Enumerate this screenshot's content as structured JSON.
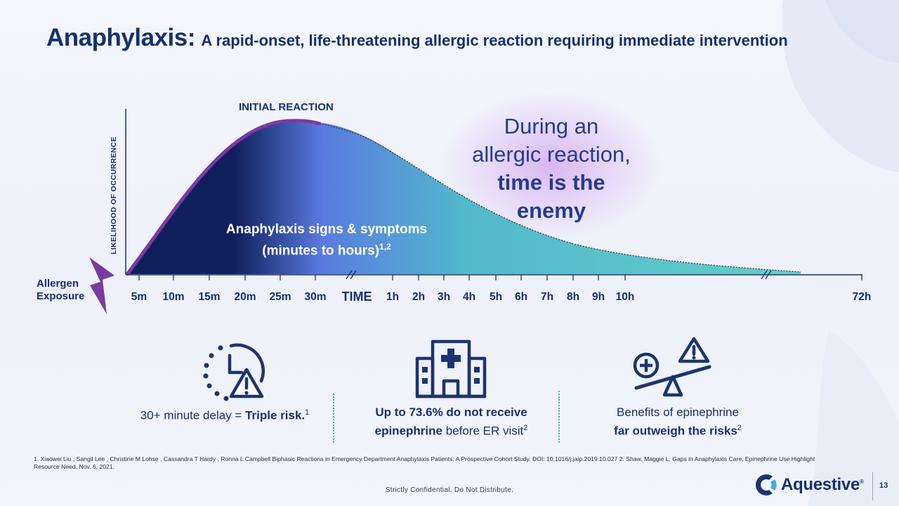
{
  "title": {
    "main": "Anaphylaxis:",
    "subtitle": "A rapid-onset, life-threatening allergic reaction requiring immediate intervention"
  },
  "chart": {
    "y_axis_label": "LIKELIHOOD OF OCCURRENCE",
    "peak_label": "INITIAL REACTION",
    "region_label_line1": "Anaphylaxis signs & symptoms",
    "region_label_line2": "(minutes to hours)",
    "region_label_ref": "1,2",
    "x_axis_start_label": "Allergen Exposure",
    "x_axis_title": "TIME",
    "x_ticks": [
      "5m",
      "10m",
      "15m",
      "20m",
      "25m",
      "30m",
      "1h",
      "2h",
      "3h",
      "4h",
      "5h",
      "6h",
      "7h",
      "8h",
      "9h",
      "10h",
      "72h"
    ],
    "colors": {
      "early": "#0f1f5c",
      "peak": "#5a7ae0",
      "late": "#63cec8",
      "initial_reaction_line": "#7b3aa0"
    }
  },
  "callout": {
    "line1": "During an",
    "line2": "allergic reaction,",
    "bold_line1": "time is the",
    "bold_line2": "enemy"
  },
  "stats": [
    {
      "icon": "clock-warning-icon",
      "text_plain": "30+ minute delay = ",
      "text_bold": "Triple risk.",
      "ref": "1"
    },
    {
      "icon": "hospital-icon",
      "text_bold_line1": "Up to 73.6% do not receive",
      "text_bold_line2": "epinephrine",
      "text_plain_line2": " before ER visit",
      "ref": "2"
    },
    {
      "icon": "scale-benefit-risk-icon",
      "text_plain_line1": "Benefits of epinephrine",
      "text_bold_line2": "far outweigh the risks",
      "ref": "2"
    }
  ],
  "footnote": "1. Xiaowei Liu , Sangil Lee , Christine M Lohse , Cassandra T Hardy , Ronna L Campbell  Biphasic Reactions in Emergency Department Anaphylaxis Patients: A Prospective Cohort Study, DOI: 10.1016/j.jaip.2019.10.027 2. Shaw, Maggie L, Gaps in Anaphylaxis Care, Epinephrine Use Highlight Resource Need, Nov. 6, 2021.",
  "confidential": "Strictly Confidential. Do Not Distribute.",
  "brand": {
    "name": "Aquestive",
    "mark": "®"
  },
  "page_number": "13"
}
